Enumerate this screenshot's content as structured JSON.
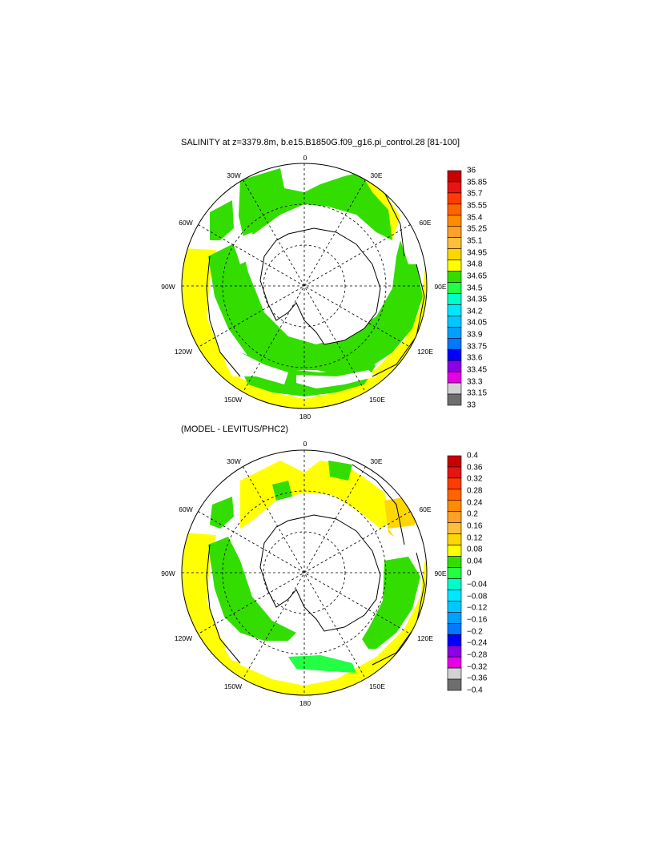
{
  "figure": {
    "top_title": "SALINITY at z=3379.8m, b.e15.B1850G.f09_g16.pi_control.28 [81-100]",
    "bottom_title": "(MODEL - LEVITUS/PHC2)"
  },
  "longitude_labels": [
    "0",
    "30E",
    "60E",
    "90E",
    "120E",
    "150E",
    "180",
    "150W",
    "120W",
    "90W",
    "60W",
    "30W"
  ],
  "colors": {
    "salinity_levels": [
      "#ffffff",
      "#f4f4f4",
      "#ffff00",
      "#33dd00",
      "#ffc800"
    ],
    "land_fill": "#ffffff",
    "coast": "#000000"
  },
  "colorbars": [
    {
      "labels": [
        "36",
        "35.85",
        "35.7",
        "35.55",
        "35.4",
        "35.25",
        "35.1",
        "34.95",
        "34.8",
        "34.65",
        "34.5",
        "34.35",
        "34.2",
        "34.05",
        "33.9",
        "33.75",
        "33.6",
        "33.45",
        "33.3",
        "33.15",
        "33"
      ],
      "colors": [
        "#c80000",
        "#e61414",
        "#ff3c00",
        "#ff6400",
        "#ff8c00",
        "#ffa028",
        "#ffbe3c",
        "#ffd700",
        "#ffff00",
        "#33dd00",
        "#22ff44",
        "#00ffc8",
        "#00e8ff",
        "#00c8ff",
        "#00a0ff",
        "#0078ff",
        "#0000ff",
        "#8c00e6",
        "#e600e6",
        "#d2d2d2",
        "#6e6e6e"
      ]
    },
    {
      "labels": [
        "0.4",
        "0.36",
        "0.32",
        "0.28",
        "0.24",
        "0.2",
        "0.16",
        "0.12",
        "0.08",
        "0.04",
        "0",
        "−0.04",
        "−0.08",
        "−0.12",
        "−0.16",
        "−0.2",
        "−0.24",
        "−0.28",
        "−0.32",
        "−0.36",
        "−0.4"
      ],
      "colors": [
        "#c80000",
        "#e61414",
        "#ff3c00",
        "#ff6400",
        "#ff8c00",
        "#ffa028",
        "#ffbe3c",
        "#ffd700",
        "#ffff00",
        "#33dd00",
        "#22ff44",
        "#00ffc8",
        "#00e8ff",
        "#00c8ff",
        "#00a0ff",
        "#0078ff",
        "#0000ff",
        "#8c00e6",
        "#e600e6",
        "#d2d2d2",
        "#6e6e6e"
      ]
    }
  ]
}
